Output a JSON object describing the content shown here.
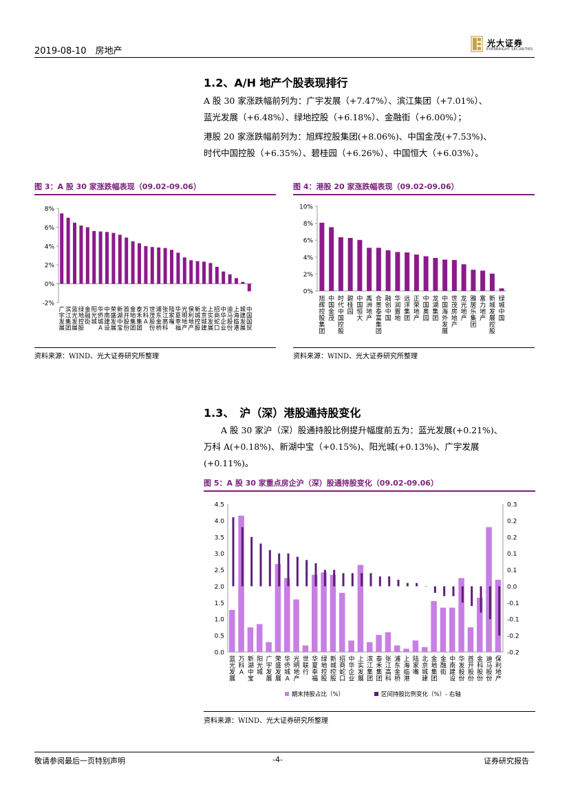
{
  "header": {
    "date": "2019-08-10",
    "category": "房地产",
    "logo_cn": "光大证券",
    "logo_en": "EVERBRIGHT SECURITIES",
    "logo_color": "#c8a24a"
  },
  "section_12": {
    "title": "1.2、A/H 地产个股表现排行",
    "para1": [
      "A 股 30 家涨跌幅前列为：广宇发展（+7.47%）、滨江集团（+7.01%）、",
      "蓝光发展（+6.48%）、绿地控股（+6.18%）、金融街（+6.00%）；"
    ],
    "para2": [
      "港股 20 家涨跌幅前列为：旭辉控股集团(+8.06%)、中国金茂(+7.53%)、",
      "时代中国控股（+6.35%）、碧桂园（+6.26%）、中国恒大（+6.03%）。"
    ]
  },
  "fig3": {
    "title": "图 3：A 股 30 家涨跌幅表现（09.02-09.06）",
    "source": "资料来源：WIND、光大证券研究所整理"
  },
  "fig4": {
    "title": "图 4：港股 20 家涨跌幅表现（09.02-09.06）",
    "source": "资料来源：WIND、光大证券研究所整理"
  },
  "section_13": {
    "title": "1.3、　沪（深）港股通持股变化",
    "para": [
      "A 股 30 家沪（深）股通持股比例提升幅度前五为：蓝光发展(+0.21%)、",
      "万科 A(+0.18%)、新湖中宝（+0.15%)、阳光城(+0.13%)、广宇发展",
      "(+0.11%)。"
    ]
  },
  "fig5": {
    "title": "图 5：A 股 30 家重点房企沪（深）股通持股变化（09.02-09.06）",
    "source": "资料来源：WIND、光大证券研究所整理"
  },
  "footer": {
    "left": "敬请参阅最后一页特别声明",
    "page": "-4-",
    "right": "证券研究报告"
  },
  "chart_data": [
    {
      "id": "fig3",
      "type": "bar",
      "color": "#8b1a8b",
      "categories": [
        "广宇发展",
        "滨江集团",
        "蓝光发展",
        "绿地控股",
        "金融街",
        "阳光城",
        "华侨城A",
        "中南建设",
        "荣盛发展",
        "新湖中宝",
        "首开股份",
        "金地集团",
        "泰禾集团",
        "万科A",
        "世茂股份",
        "浦东金桥",
        "张江高科",
        "陆家嘴",
        "华夏幸福",
        "光明地产",
        "保利地产",
        "新城控股",
        "北京城建",
        "上实发展",
        "招商蛇口",
        "中华企业",
        "迪马股份",
        "上海临港",
        "城建发展",
        "中国国贸"
      ],
      "values": [
        7.47,
        7.01,
        6.48,
        6.18,
        6.0,
        5.6,
        5.55,
        5.5,
        5.4,
        5.2,
        4.9,
        4.5,
        4.3,
        4.0,
        3.9,
        3.85,
        3.8,
        3.6,
        3.3,
        2.8,
        2.5,
        2.4,
        2.35,
        2.2,
        1.8,
        1.3,
        1.0,
        0.6,
        0.2,
        -0.8
      ],
      "yticks": [
        "8%",
        "6%",
        "4%",
        "2%",
        "0%",
        "-2%"
      ],
      "ylim": [
        -2,
        8
      ]
    },
    {
      "id": "fig4",
      "type": "bar",
      "color": "#8b1a8b",
      "categories": [
        "旭辉控股集团",
        "中国金茂",
        "时代中国控股",
        "碧桂园",
        "中国恒大",
        "禹洲地产",
        "合景泰富集团",
        "融创中国",
        "华润置地",
        "远洋集团",
        "正荣地产",
        "中国奥园",
        "龙湖集团",
        "中国海外发展",
        "世茂房地产",
        "龙光地产",
        "雅居乐集团",
        "富力地产",
        "新城发展控股",
        "绿城中国"
      ],
      "values": [
        8.06,
        7.53,
        6.35,
        6.26,
        6.03,
        5.1,
        5.1,
        4.8,
        4.6,
        4.55,
        4.3,
        4.1,
        3.9,
        3.7,
        3.65,
        3.15,
        2.5,
        2.4,
        2.05,
        0.3
      ],
      "yticks": [
        "10%",
        "8%",
        "6%",
        "4%",
        "2%",
        "0%"
      ],
      "ylim": [
        0,
        10
      ]
    },
    {
      "id": "fig5",
      "type": "bar",
      "categories": [
        "蓝光发展",
        "万科A",
        "新湖中宝",
        "阳光城",
        "广宇发展",
        "荣盛发展",
        "华侨城A",
        "光明地产",
        "世联行",
        "华夏幸福",
        "绿地控股",
        "新城控股",
        "招商蛇口",
        "中华企业",
        "上实发展",
        "滨江集团",
        "泰禾集团",
        "张江高科",
        "浦东金桥",
        "上海临港",
        "陆家嘴",
        "北京城建",
        "金地集团",
        "金融街",
        "中南建设",
        "华发股份",
        "首开股份",
        "金科股份",
        "迪马股份",
        "保利地产"
      ],
      "series": [
        {
          "name": "期末持股占比（%）",
          "color": "#c77fe4",
          "axis": "left",
          "values": [
            1.28,
            4.15,
            0.75,
            0.85,
            0.3,
            2.68,
            2.25,
            1.6,
            0.2,
            2.35,
            2.42,
            2.35,
            1.8,
            0.35,
            2.65,
            0.3,
            0.52,
            0.6,
            0.2,
            0.1,
            0.35,
            0.15,
            1.55,
            1.35,
            1.35,
            2.25,
            0.75,
            1.65,
            3.8,
            2.2
          ]
        },
        {
          "name": "区间持股比例变化（%）- 右轴",
          "color": "#5c1f78",
          "axis": "right",
          "values": [
            0.21,
            0.18,
            0.15,
            0.13,
            0.11,
            0.1,
            0.1,
            0.09,
            0.08,
            0.07,
            0.05,
            0.05,
            0.04,
            0.04,
            0.04,
            0.04,
            0.03,
            0.03,
            0.02,
            0.01,
            0.01,
            0.0,
            -0.02,
            -0.03,
            -0.03,
            -0.05,
            -0.06,
            -0.08,
            -0.1,
            -0.15
          ]
        }
      ],
      "yticks_left": [
        "4.5",
        "4.0",
        "3.5",
        "3.0",
        "2.5",
        "2.0",
        "1.5",
        "1.0",
        "0.5",
        "0.0"
      ],
      "yticks_right": [
        "0.3",
        "0.2",
        "0.2",
        "0.1",
        "0.1",
        "0.0",
        "-0.1",
        "-0.1",
        "-0.2",
        "-0.2"
      ],
      "ylim_left": [
        0,
        4.5
      ],
      "ylim_right": [
        -0.2,
        0.25
      ]
    }
  ]
}
